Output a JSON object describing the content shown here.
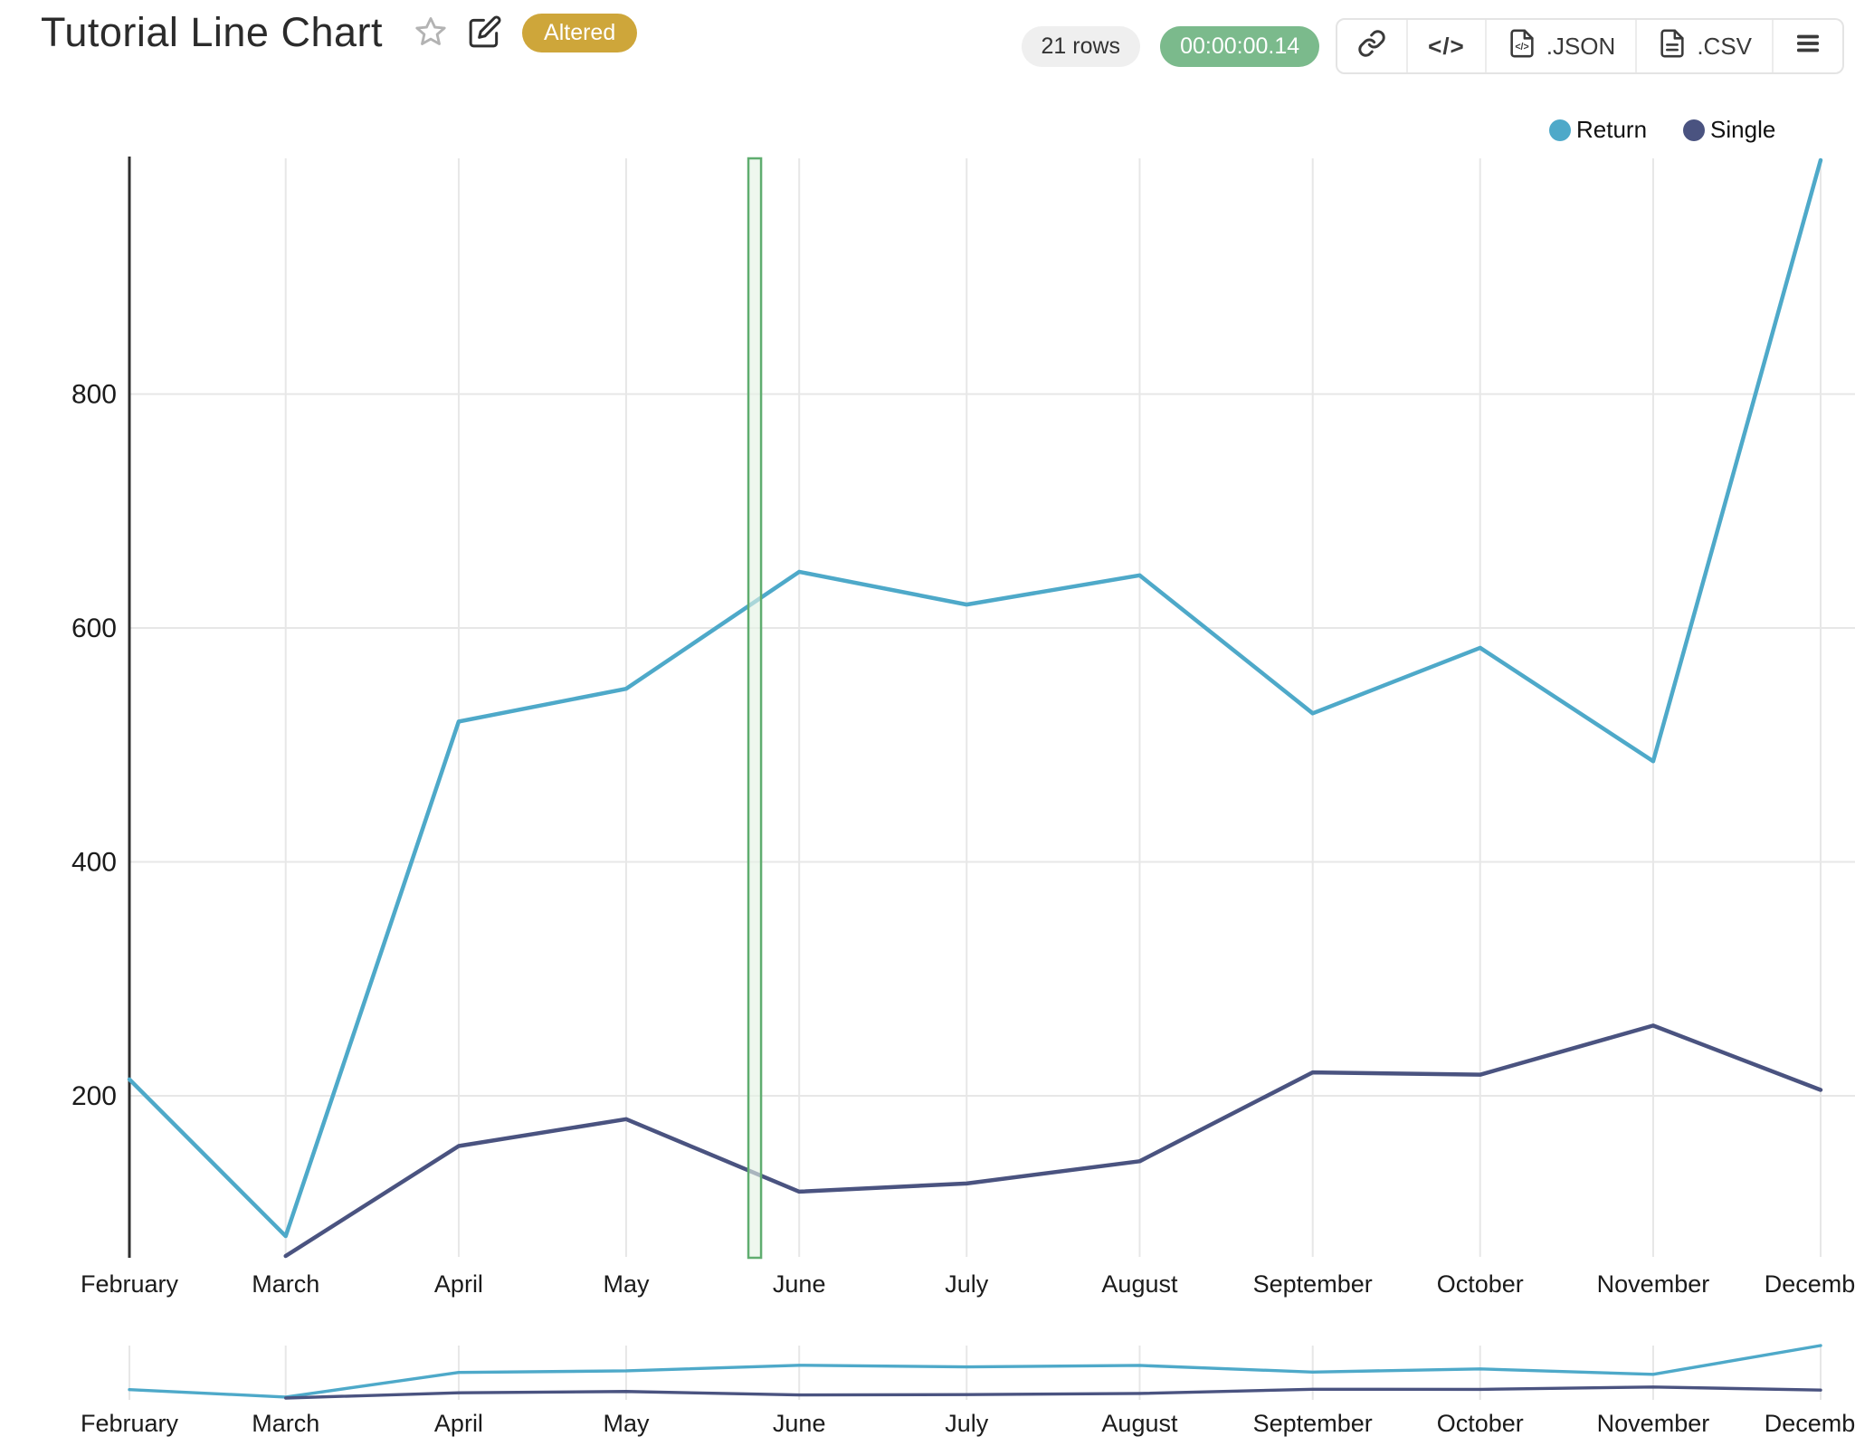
{
  "header": {
    "title": "Tutorial Line Chart",
    "altered_badge": "Altered"
  },
  "toolbar": {
    "rows_badge": "21 rows",
    "timer_badge": "00:00:00.14",
    "json_label": ".JSON",
    "csv_label": ".CSV"
  },
  "colors": {
    "return_line": "#4EA9C9",
    "single_line": "#4A5380",
    "badge_gold": "#CEA63A",
    "timer_green": "#7BBA8C",
    "band_fill": "#E4F2E4",
    "band_border": "#5FAD6F",
    "gridline": "#e7e7e7",
    "axis": "#2f2f2f"
  },
  "chart_data": {
    "type": "line",
    "title": "Tutorial Line Chart",
    "categories": [
      "February",
      "March",
      "April",
      "May",
      "June",
      "July",
      "August",
      "September",
      "October",
      "November",
      "December"
    ],
    "month_day_offsets": [
      0,
      28,
      59,
      89,
      120,
      150,
      181,
      212,
      242,
      273,
      303
    ],
    "series": [
      {
        "name": "Return",
        "color": "#4EA9C9",
        "values": [
          214,
          80,
          520,
          548,
          648,
          620,
          645,
          527,
          583,
          486,
          1000
        ]
      },
      {
        "name": "Single",
        "color": "#4A5380",
        "values": [
          null,
          63,
          157,
          180,
          118,
          125,
          144,
          220,
          218,
          260,
          205
        ]
      }
    ],
    "ylim": [
      63,
      1000
    ],
    "yticks": [
      200,
      400,
      600,
      800
    ],
    "grid": true,
    "legend_position": "top-right",
    "annotation_band": {
      "from_frac": 0.366,
      "to_frac": 0.3735
    },
    "has_overview_strip": true
  }
}
